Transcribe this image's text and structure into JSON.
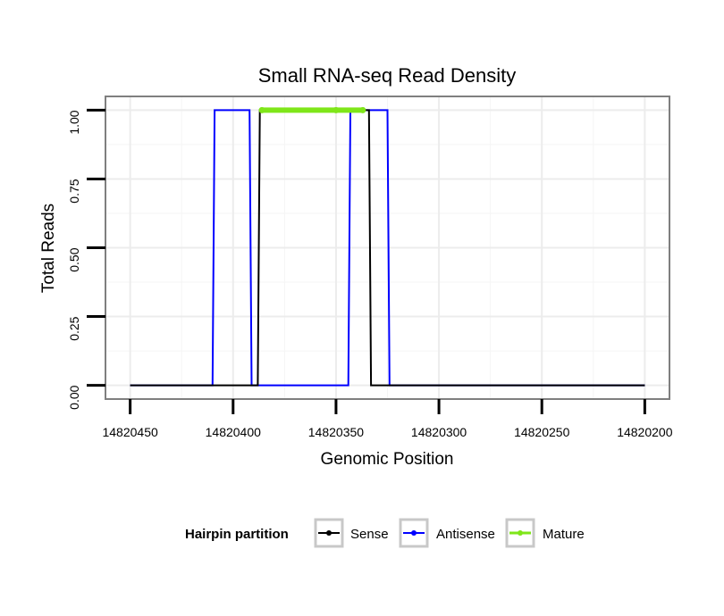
{
  "chart_data": {
    "type": "line",
    "title": "Small RNA-seq Read Density",
    "xlabel": "Genomic Position",
    "ylabel": "Total Reads",
    "x_reversed": true,
    "xlim": [
      14820462,
      14820188
    ],
    "ylim": [
      -0.05,
      1.05
    ],
    "x_ticks": [
      14820450,
      14820400,
      14820350,
      14820300,
      14820250,
      14820200
    ],
    "x_tick_labels": [
      "14820450",
      "14820400",
      "14820350",
      "14820300",
      "14820250",
      "14820200"
    ],
    "y_ticks": [
      0,
      0.25,
      0.5,
      0.75,
      1
    ],
    "y_tick_labels": [
      "0.00",
      "0.25",
      "0.50",
      "0.75",
      "1.00"
    ],
    "grid": true,
    "legend": {
      "title": "Hairpin partition",
      "placement": "bottom",
      "entries": [
        "Sense",
        "Antisense",
        "Mature"
      ]
    },
    "series": [
      {
        "name": "Antisense",
        "color": "#0000ff",
        "x": [
          14820450,
          14820410,
          14820409,
          14820392,
          14820391,
          14820344,
          14820343,
          14820325,
          14820324,
          14820200
        ],
        "y": [
          0,
          0,
          1,
          1,
          0,
          0,
          1,
          1,
          0,
          0
        ]
      },
      {
        "name": "Sense",
        "color": "#000000",
        "x": [
          14820450,
          14820388,
          14820387,
          14820334,
          14820333,
          14820200
        ],
        "y": [
          0,
          0,
          1,
          1,
          0,
          0
        ]
      },
      {
        "name": "Mature",
        "color": "#7fe619",
        "x": [
          14820386,
          14820350,
          14820337
        ],
        "y": [
          1,
          1,
          1
        ]
      }
    ]
  }
}
